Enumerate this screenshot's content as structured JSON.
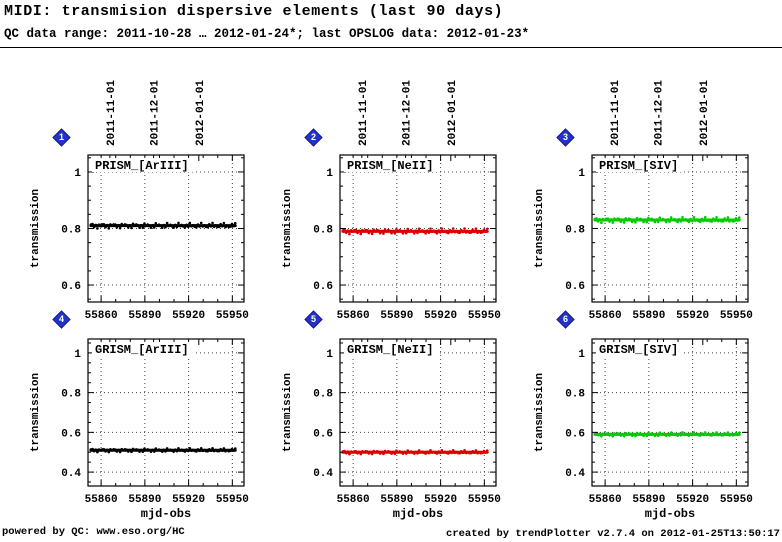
{
  "header": {
    "title": "MIDI: transmision dispersive elements (last 90 days)",
    "subtitle": "QC data range: 2011-10-28 … 2012-01-24*; last OPSLOG data: 2012-01-23*"
  },
  "footer": {
    "left": "powered by QC: www.eso.org/HC",
    "right": "created by trendPlotter v2.7.4 on 2012-01-25T13:50:17"
  },
  "chart_data": {
    "type": "scatter",
    "layout": "2 rows x 3 cols",
    "xlabel": "mjd-obs",
    "ylabel": "transmission",
    "xticks": [
      55860,
      55890,
      55920,
      55950
    ],
    "xlim": [
      55851,
      55958
    ],
    "grid": true,
    "legend": "none",
    "top_axis_dates": [
      {
        "label": "2011-11-01",
        "mjd": 55866
      },
      {
        "label": "2011-12-01",
        "mjd": 55896
      },
      {
        "label": "2012-01-01",
        "mjd": 55927
      }
    ],
    "panels": [
      {
        "id": 1,
        "title": "PRISM_[ArIII]",
        "color": "#000000",
        "value": 0.81,
        "x_start": 55853,
        "x_end": 55952,
        "yticks": [
          0.6,
          0.8,
          1
        ],
        "ylim": [
          0.54,
          1.06
        ]
      },
      {
        "id": 2,
        "title": "PRISM_[NeII]",
        "color": "#dd0000",
        "value": 0.79,
        "x_start": 55853,
        "x_end": 55952,
        "yticks": [
          0.6,
          0.8,
          1
        ],
        "ylim": [
          0.54,
          1.06
        ]
      },
      {
        "id": 3,
        "title": "PRISM_[SIV]",
        "color": "#00cc00",
        "value": 0.83,
        "x_start": 55853,
        "x_end": 55952,
        "yticks": [
          0.6,
          0.8,
          1
        ],
        "ylim": [
          0.54,
          1.06
        ]
      },
      {
        "id": 4,
        "title": "GRISM_[ArIII]",
        "color": "#000000",
        "value": 0.51,
        "x_start": 55853,
        "x_end": 55952,
        "yticks": [
          0.4,
          0.6,
          0.8,
          1
        ],
        "ylim": [
          0.33,
          1.07
        ]
      },
      {
        "id": 5,
        "title": "GRISM_[NeII]",
        "color": "#dd0000",
        "value": 0.5,
        "x_start": 55853,
        "x_end": 55952,
        "yticks": [
          0.4,
          0.6,
          0.8,
          1
        ],
        "ylim": [
          0.33,
          1.07
        ]
      },
      {
        "id": 6,
        "title": "GRISM_[SIV]",
        "color": "#00cc00",
        "value": 0.59,
        "x_start": 55853,
        "x_end": 55952,
        "yticks": [
          0.4,
          0.6,
          0.8,
          1
        ],
        "ylim": [
          0.33,
          1.07
        ]
      }
    ]
  }
}
